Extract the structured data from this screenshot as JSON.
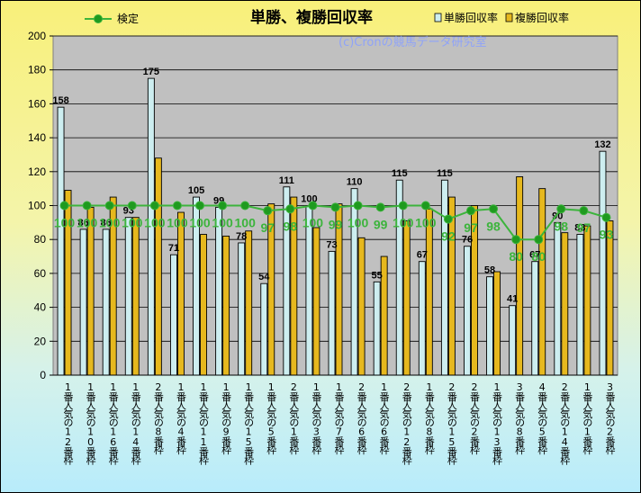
{
  "chart_data": {
    "type": "bar",
    "title": "単勝、複勝回収率",
    "watermark": "(c)Cronの競馬データ研究室",
    "ylim": [
      0,
      200
    ],
    "yticks": [
      0,
      20,
      40,
      60,
      80,
      100,
      120,
      140,
      160,
      180,
      200
    ],
    "grid": true,
    "legend": {
      "placement": "top"
    },
    "categories": [
      "1番人気の12番枠",
      "1番人気の10番枠",
      "1番人気の16番枠",
      "1番人気の14番枠",
      "2番人気の8番枠",
      "1番人気の4番枠",
      "1番人気の11番枠",
      "1番人気の9番枠",
      "1番人気の15番枠",
      "1番人気の5番枠",
      "2番人気の1番枠",
      "1番人気の3番枠",
      "1番人気の7番枠",
      "2番人気の6番枠",
      "1番人気の6番枠",
      "2番人気の12番枠",
      "1番人気の8番枠",
      "2番人気の15番枠",
      "2番人気の2番枠",
      "1番人気の13番枠",
      "3番人気の8番枠",
      "4番人気の5番枠",
      "2番人気の14番枠",
      "1番人気の1番枠",
      "3番人気の2番枠"
    ],
    "series": [
      {
        "name": "単勝回収率",
        "color": "#cdeef0",
        "values": [
          158,
          86,
          86,
          93,
          175,
          71,
          105,
          99,
          78,
          54,
          111,
          100,
          73,
          110,
          55,
          115,
          67,
          115,
          76,
          58,
          41,
          67,
          90,
          83,
          132
        ]
      },
      {
        "name": "複勝回収率",
        "color": "#e6b81e",
        "values": [
          109,
          99,
          105,
          93,
          128,
          96,
          83,
          82,
          85,
          101,
          105,
          87,
          101,
          81,
          70,
          91,
          98,
          105,
          100,
          61,
          117,
          110,
          84,
          88,
          91
        ]
      },
      {
        "name": "検定",
        "type": "line",
        "color": "#3cb43c",
        "values": [
          100,
          100,
          100,
          100,
          100,
          100,
          100,
          100,
          100,
          97,
          98,
          100,
          99,
          100,
          99,
          100,
          100,
          92,
          97,
          98,
          80,
          80,
          98,
          97,
          93
        ]
      }
    ]
  }
}
